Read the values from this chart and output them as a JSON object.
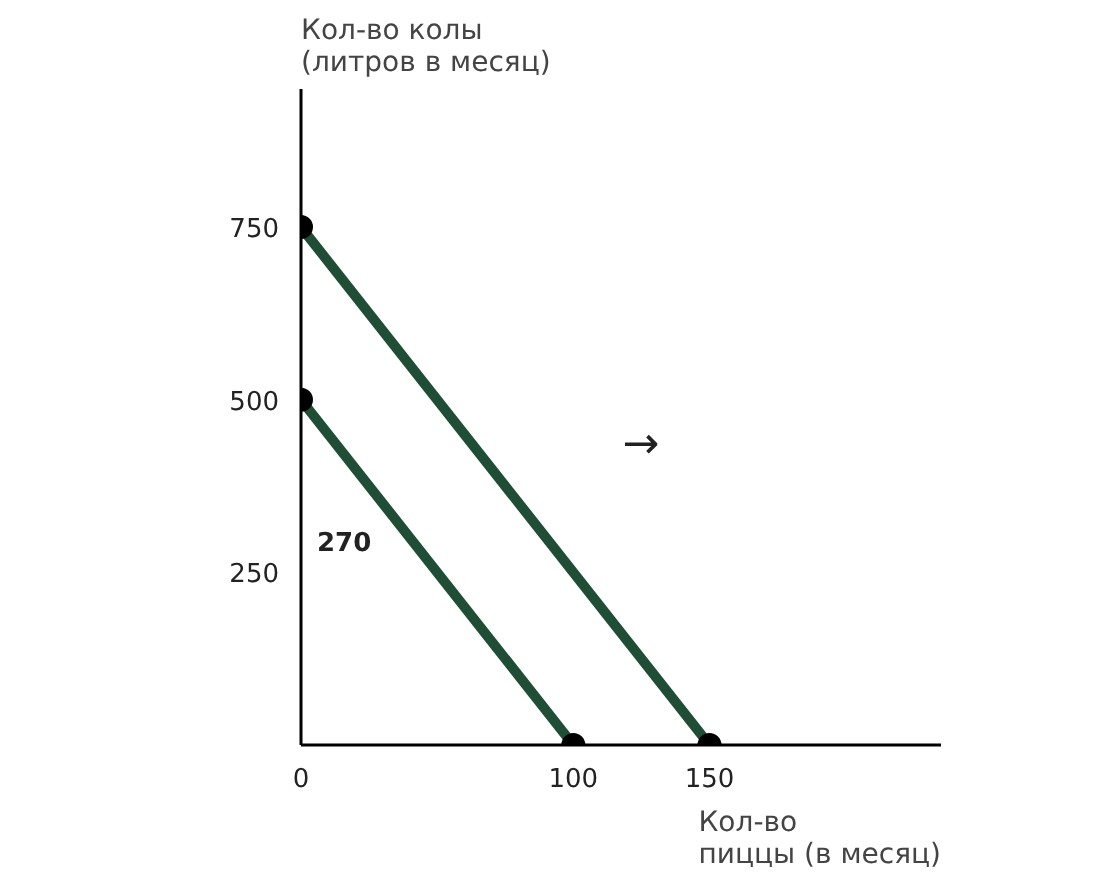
{
  "chart_data": {
    "type": "line",
    "xlabel": "Кол-во\nпиццы (в месяц)",
    "ylabel": "Кол-во колы\n(литров в месяц)",
    "series": [
      {
        "x": [
          0,
          100
        ],
        "values": [
          500,
          0
        ],
        "color": "#1f4d35"
      },
      {
        "x": [
          0,
          150
        ],
        "values": [
          750,
          0
        ],
        "color": "#1f4d35"
      }
    ],
    "xlim": [
      0,
      235
    ],
    "ylim": [
      0,
      950
    ],
    "xticks": [
      0,
      100,
      150
    ],
    "yticks": [
      250,
      500,
      750
    ],
    "marker": "circle",
    "grid": false,
    "annotations": [
      "→",
      "270"
    ]
  }
}
